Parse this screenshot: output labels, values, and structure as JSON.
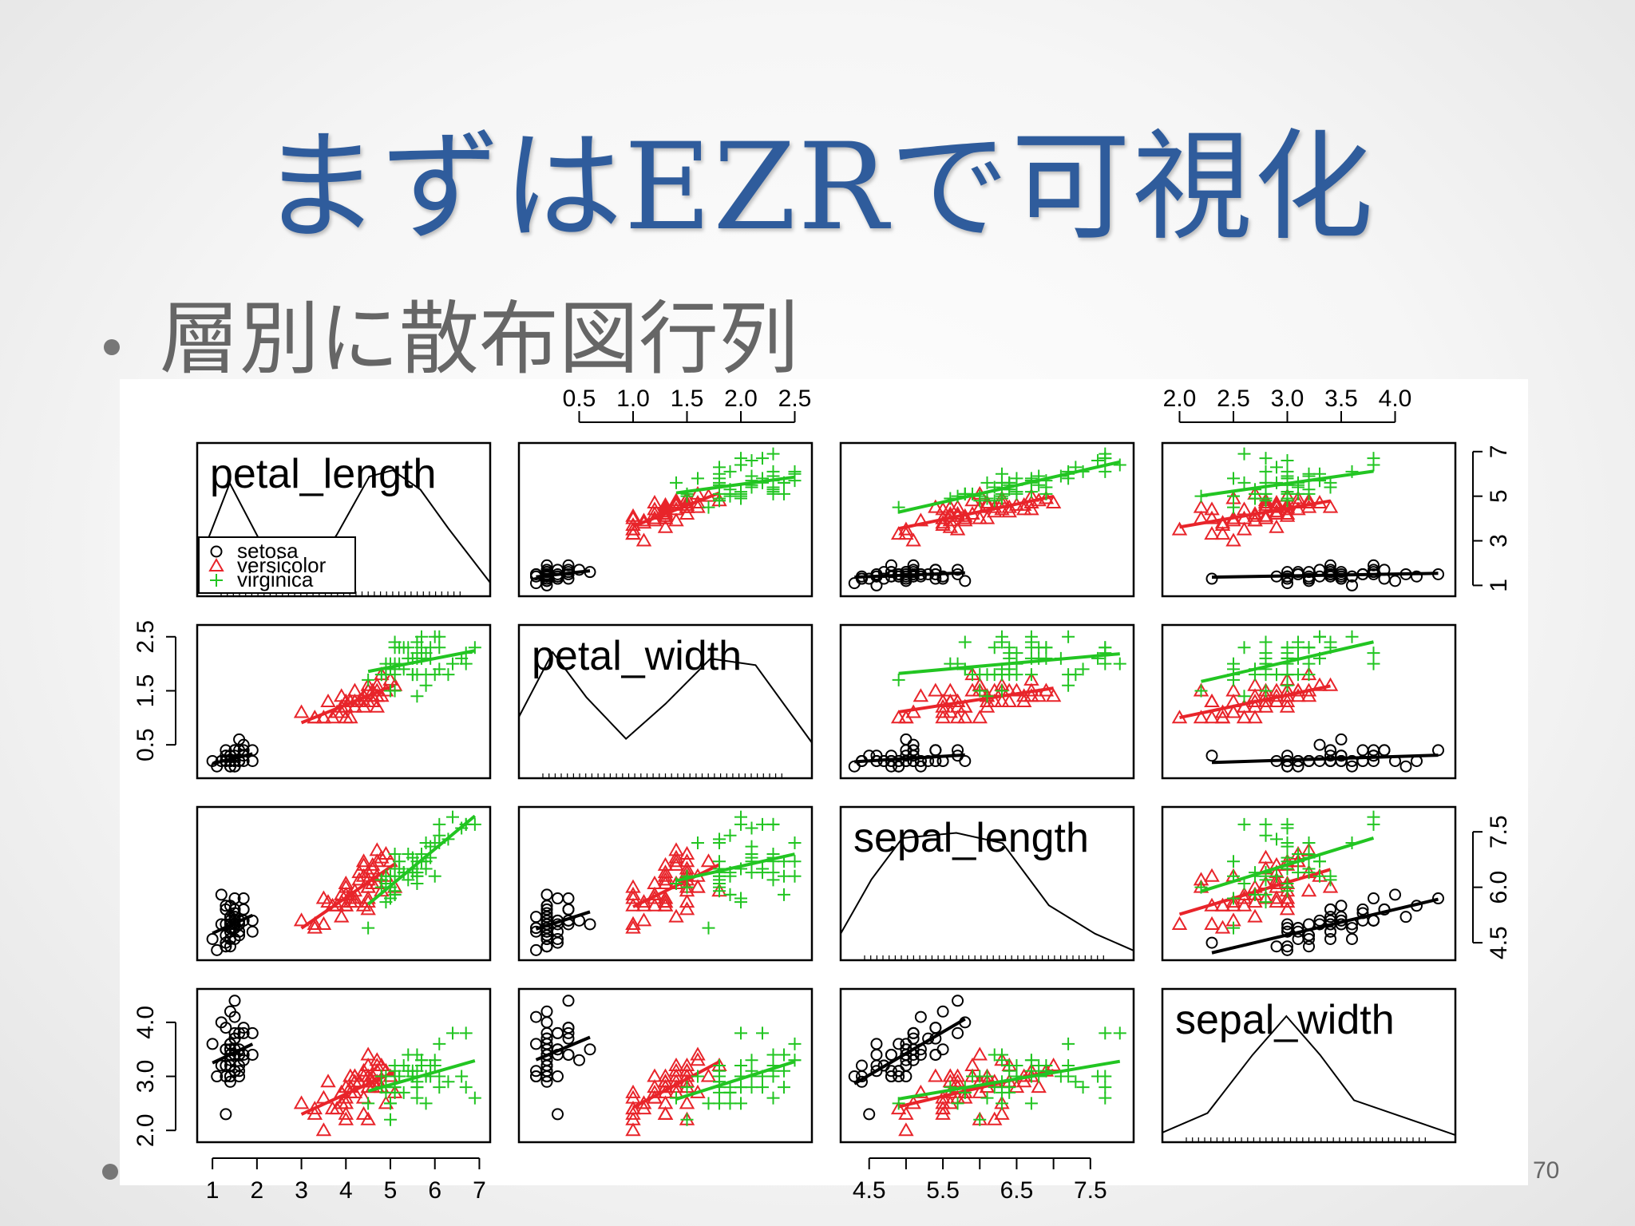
{
  "slide": {
    "title": "まずはEZRで可視化",
    "bullet": "層別に散布図行列",
    "page_number": "70"
  },
  "colors": {
    "title": "#2f5c9c",
    "setosa": "#000000",
    "versicolor": "#e8242a",
    "virginica": "#22c522"
  },
  "chart_data": {
    "type": "scatter",
    "subtype": "scatterplot-matrix",
    "variables": [
      "petal_length",
      "petal_width",
      "sepal_length",
      "sepal_width"
    ],
    "ranges": {
      "petal_length": [
        0.8,
        7.1
      ],
      "petal_width": [
        0.0,
        2.6
      ],
      "sepal_length": [
        4.2,
        8.0
      ],
      "sepal_width": [
        1.9,
        4.5
      ]
    },
    "ticks": {
      "petal_length": {
        "values": [
          1,
          2,
          3,
          4,
          5,
          6,
          7
        ],
        "labels": [
          "1",
          "2",
          "3",
          "4",
          "5",
          "6",
          "7"
        ]
      },
      "petal_length_right": {
        "values": [
          1,
          3,
          5,
          7
        ],
        "labels": [
          "1",
          "3",
          "5",
          "7"
        ]
      },
      "petal_width": {
        "values": [
          0.5,
          1.0,
          1.5,
          2.0,
          2.5
        ],
        "labels": [
          "0.5",
          "1.0",
          "1.5",
          "2.0",
          "2.5"
        ]
      },
      "petal_width_left": {
        "values": [
          0.5,
          1.5,
          2.5
        ],
        "labels": [
          "0.5",
          "1.5",
          "2.5"
        ]
      },
      "sepal_length": {
        "values": [
          4.5,
          5.0,
          5.5,
          6.0,
          6.5,
          7.0,
          7.5
        ],
        "labels": [
          "4.5",
          "",
          "5.5",
          "",
          "6.5",
          "",
          "7.5"
        ]
      },
      "sepal_length_right": {
        "values": [
          4.5,
          6.0,
          7.5
        ],
        "labels": [
          "4.5",
          "6.0",
          "7.5"
        ]
      },
      "sepal_width": {
        "values": [
          2.0,
          2.5,
          3.0,
          3.5,
          4.0
        ],
        "labels": [
          "2.0",
          "2.5",
          "3.0",
          "3.5",
          "4.0"
        ]
      },
      "sepal_width_left": {
        "values": [
          2.0,
          3.0,
          4.0
        ],
        "labels": [
          "2.0",
          "3.0",
          "4.0"
        ]
      }
    },
    "legend": {
      "position": "inside-top-left-bottom",
      "entries": [
        {
          "name": "setosa",
          "marker": "circle",
          "color": "#000000"
        },
        {
          "name": "versicolor",
          "marker": "triangle",
          "color": "#e8242a"
        },
        {
          "name": "virginica",
          "marker": "plus",
          "color": "#22c522"
        }
      ]
    },
    "density": {
      "petal_length": [
        [
          0.8,
          0.2
        ],
        [
          1.5,
          0.85
        ],
        [
          2.3,
          0.3
        ],
        [
          3.0,
          0.05
        ],
        [
          3.8,
          0.45
        ],
        [
          4.5,
          0.9
        ],
        [
          5.0,
          0.95
        ],
        [
          5.6,
          0.8
        ],
        [
          6.2,
          0.5
        ],
        [
          7.1,
          0.08
        ]
      ],
      "petal_width": [
        [
          0.0,
          0.45
        ],
        [
          0.3,
          0.95
        ],
        [
          0.6,
          0.6
        ],
        [
          0.95,
          0.28
        ],
        [
          1.3,
          0.55
        ],
        [
          1.7,
          0.9
        ],
        [
          2.1,
          0.85
        ],
        [
          2.6,
          0.25
        ]
      ],
      "sepal_length": [
        [
          4.2,
          0.18
        ],
        [
          4.6,
          0.6
        ],
        [
          5.0,
          0.92
        ],
        [
          5.7,
          0.96
        ],
        [
          6.3,
          0.88
        ],
        [
          6.9,
          0.4
        ],
        [
          7.5,
          0.18
        ],
        [
          8.0,
          0.05
        ]
      ],
      "sepal_width": [
        [
          1.9,
          0.05
        ],
        [
          2.3,
          0.2
        ],
        [
          2.7,
          0.65
        ],
        [
          3.0,
          0.95
        ],
        [
          3.3,
          0.65
        ],
        [
          3.6,
          0.3
        ],
        [
          4.0,
          0.18
        ],
        [
          4.5,
          0.03
        ]
      ]
    },
    "series": [
      {
        "name": "setosa",
        "points": [
          [
            1.4,
            0.2,
            5.1,
            3.5
          ],
          [
            1.4,
            0.2,
            4.9,
            3.0
          ],
          [
            1.3,
            0.2,
            4.7,
            3.2
          ],
          [
            1.5,
            0.2,
            4.6,
            3.1
          ],
          [
            1.4,
            0.2,
            5.0,
            3.6
          ],
          [
            1.7,
            0.4,
            5.4,
            3.9
          ],
          [
            1.4,
            0.3,
            4.6,
            3.4
          ],
          [
            1.5,
            0.2,
            5.0,
            3.4
          ],
          [
            1.4,
            0.2,
            4.4,
            2.9
          ],
          [
            1.5,
            0.1,
            4.9,
            3.1
          ],
          [
            1.5,
            0.2,
            5.4,
            3.7
          ],
          [
            1.6,
            0.2,
            4.8,
            3.4
          ],
          [
            1.4,
            0.1,
            4.8,
            3.0
          ],
          [
            1.1,
            0.1,
            4.3,
            3.0
          ],
          [
            1.2,
            0.2,
            5.8,
            4.0
          ],
          [
            1.5,
            0.4,
            5.7,
            4.4
          ],
          [
            1.3,
            0.4,
            5.4,
            3.9
          ],
          [
            1.4,
            0.3,
            5.1,
            3.5
          ],
          [
            1.7,
            0.3,
            5.7,
            3.8
          ],
          [
            1.5,
            0.3,
            5.1,
            3.8
          ],
          [
            1.7,
            0.2,
            5.4,
            3.4
          ],
          [
            1.5,
            0.4,
            5.1,
            3.7
          ],
          [
            1.0,
            0.2,
            4.6,
            3.6
          ],
          [
            1.7,
            0.5,
            5.1,
            3.3
          ],
          [
            1.9,
            0.2,
            4.8,
            3.4
          ],
          [
            1.6,
            0.2,
            5.0,
            3.0
          ],
          [
            1.6,
            0.4,
            5.0,
            3.4
          ],
          [
            1.5,
            0.2,
            5.2,
            3.5
          ],
          [
            1.4,
            0.2,
            5.2,
            3.4
          ],
          [
            1.6,
            0.2,
            4.7,
            3.2
          ],
          [
            1.6,
            0.2,
            4.8,
            3.1
          ],
          [
            1.5,
            0.4,
            5.4,
            3.4
          ],
          [
            1.5,
            0.1,
            5.2,
            4.1
          ],
          [
            1.4,
            0.2,
            5.5,
            4.2
          ],
          [
            1.5,
            0.2,
            4.9,
            3.1
          ],
          [
            1.2,
            0.2,
            5.0,
            3.2
          ],
          [
            1.3,
            0.2,
            5.5,
            3.5
          ],
          [
            1.4,
            0.1,
            4.9,
            3.6
          ],
          [
            1.3,
            0.2,
            4.4,
            3.0
          ],
          [
            1.5,
            0.2,
            5.1,
            3.4
          ],
          [
            1.3,
            0.3,
            5.0,
            3.5
          ],
          [
            1.3,
            0.3,
            4.5,
            2.3
          ],
          [
            1.3,
            0.2,
            4.4,
            3.2
          ],
          [
            1.6,
            0.6,
            5.0,
            3.5
          ],
          [
            1.9,
            0.4,
            5.1,
            3.8
          ],
          [
            1.4,
            0.3,
            4.8,
            3.0
          ],
          [
            1.6,
            0.2,
            5.1,
            3.8
          ],
          [
            1.4,
            0.2,
            4.6,
            3.2
          ],
          [
            1.5,
            0.2,
            5.3,
            3.7
          ],
          [
            1.4,
            0.2,
            5.0,
            3.3
          ]
        ]
      },
      {
        "name": "versicolor",
        "points": [
          [
            4.7,
            1.4,
            7.0,
            3.2
          ],
          [
            4.5,
            1.5,
            6.4,
            3.2
          ],
          [
            4.9,
            1.5,
            6.9,
            3.1
          ],
          [
            4.0,
            1.3,
            5.5,
            2.3
          ],
          [
            4.6,
            1.5,
            6.5,
            2.8
          ],
          [
            4.5,
            1.3,
            5.7,
            2.8
          ],
          [
            4.7,
            1.6,
            6.3,
            3.3
          ],
          [
            3.3,
            1.0,
            4.9,
            2.4
          ],
          [
            4.6,
            1.3,
            6.6,
            2.9
          ],
          [
            3.9,
            1.4,
            5.2,
            2.7
          ],
          [
            3.5,
            1.0,
            5.0,
            2.0
          ],
          [
            4.2,
            1.5,
            5.9,
            3.0
          ],
          [
            4.0,
            1.0,
            6.0,
            2.2
          ],
          [
            4.7,
            1.4,
            6.1,
            2.9
          ],
          [
            3.6,
            1.3,
            5.6,
            2.9
          ],
          [
            4.4,
            1.4,
            6.7,
            3.1
          ],
          [
            4.5,
            1.5,
            5.6,
            3.0
          ],
          [
            4.1,
            1.0,
            5.8,
            2.7
          ],
          [
            4.5,
            1.5,
            6.2,
            2.2
          ],
          [
            3.9,
            1.1,
            5.6,
            2.5
          ],
          [
            4.8,
            1.8,
            5.9,
            3.2
          ],
          [
            4.0,
            1.3,
            6.1,
            2.8
          ],
          [
            4.9,
            1.5,
            6.3,
            2.5
          ],
          [
            4.7,
            1.2,
            6.1,
            2.8
          ],
          [
            4.3,
            1.3,
            6.4,
            2.9
          ],
          [
            4.4,
            1.4,
            6.6,
            3.0
          ],
          [
            4.8,
            1.4,
            6.8,
            2.8
          ],
          [
            5.0,
            1.7,
            6.7,
            3.0
          ],
          [
            4.5,
            1.5,
            6.0,
            2.9
          ],
          [
            3.5,
            1.0,
            5.7,
            2.6
          ],
          [
            3.8,
            1.1,
            5.5,
            2.4
          ],
          [
            3.7,
            1.0,
            5.5,
            2.4
          ],
          [
            3.9,
            1.2,
            5.8,
            2.7
          ],
          [
            5.1,
            1.6,
            6.0,
            2.7
          ],
          [
            4.5,
            1.5,
            5.4,
            3.0
          ],
          [
            4.5,
            1.6,
            6.0,
            3.4
          ],
          [
            4.7,
            1.5,
            6.7,
            3.1
          ],
          [
            4.4,
            1.3,
            6.3,
            2.3
          ],
          [
            4.1,
            1.3,
            5.6,
            3.0
          ],
          [
            4.0,
            1.3,
            5.5,
            2.5
          ],
          [
            4.4,
            1.2,
            5.5,
            2.6
          ],
          [
            4.6,
            1.4,
            6.1,
            3.0
          ],
          [
            4.0,
            1.2,
            5.8,
            2.6
          ],
          [
            3.3,
            1.0,
            5.0,
            2.3
          ],
          [
            4.2,
            1.3,
            5.6,
            2.7
          ],
          [
            4.2,
            1.2,
            5.7,
            3.0
          ],
          [
            4.2,
            1.3,
            5.7,
            2.9
          ],
          [
            4.3,
            1.3,
            6.2,
            2.9
          ],
          [
            3.0,
            1.1,
            5.1,
            2.5
          ],
          [
            4.1,
            1.3,
            5.7,
            2.8
          ]
        ]
      },
      {
        "name": "virginica",
        "points": [
          [
            6.0,
            2.5,
            6.3,
            3.3
          ],
          [
            5.1,
            1.9,
            5.8,
            2.7
          ],
          [
            5.9,
            2.1,
            7.1,
            3.0
          ],
          [
            5.6,
            1.8,
            6.3,
            2.9
          ],
          [
            5.8,
            2.2,
            6.5,
            3.0
          ],
          [
            6.6,
            2.1,
            7.6,
            3.0
          ],
          [
            4.5,
            1.7,
            4.9,
            2.5
          ],
          [
            6.3,
            1.8,
            7.3,
            2.9
          ],
          [
            5.8,
            1.8,
            6.7,
            2.5
          ],
          [
            6.1,
            2.5,
            7.2,
            3.6
          ],
          [
            5.1,
            2.0,
            6.5,
            3.2
          ],
          [
            5.3,
            1.9,
            6.4,
            2.7
          ],
          [
            5.5,
            2.1,
            6.8,
            3.0
          ],
          [
            5.0,
            2.0,
            5.7,
            2.5
          ],
          [
            5.1,
            2.4,
            5.8,
            2.8
          ],
          [
            5.3,
            2.3,
            6.4,
            3.2
          ],
          [
            5.5,
            1.8,
            6.5,
            3.0
          ],
          [
            6.7,
            2.2,
            7.7,
            3.8
          ],
          [
            6.9,
            2.3,
            7.7,
            2.6
          ],
          [
            5.0,
            1.5,
            6.0,
            2.2
          ],
          [
            5.7,
            2.3,
            6.9,
            3.2
          ],
          [
            4.9,
            2.0,
            5.6,
            2.8
          ],
          [
            6.7,
            2.0,
            7.7,
            2.8
          ],
          [
            4.9,
            1.8,
            6.3,
            2.7
          ],
          [
            5.7,
            2.1,
            6.7,
            3.3
          ],
          [
            6.0,
            1.8,
            7.2,
            3.2
          ],
          [
            4.8,
            1.8,
            6.2,
            2.8
          ],
          [
            4.9,
            1.8,
            6.1,
            3.0
          ],
          [
            5.6,
            2.1,
            6.4,
            2.8
          ],
          [
            5.8,
            1.6,
            7.2,
            3.0
          ],
          [
            6.1,
            1.9,
            7.4,
            2.8
          ],
          [
            6.4,
            2.0,
            7.9,
            3.8
          ],
          [
            5.6,
            2.2,
            6.4,
            2.8
          ],
          [
            5.1,
            1.5,
            6.3,
            2.8
          ],
          [
            5.6,
            1.4,
            6.1,
            2.6
          ],
          [
            6.1,
            2.3,
            7.7,
            3.0
          ],
          [
            5.6,
            2.4,
            6.3,
            3.4
          ],
          [
            5.5,
            1.8,
            6.4,
            3.1
          ],
          [
            4.8,
            1.8,
            6.0,
            3.0
          ],
          [
            5.4,
            2.1,
            6.9,
            3.1
          ],
          [
            5.6,
            2.4,
            6.7,
            3.1
          ],
          [
            5.1,
            2.3,
            6.9,
            3.1
          ],
          [
            5.1,
            1.9,
            5.8,
            2.7
          ],
          [
            5.9,
            2.3,
            6.8,
            3.2
          ],
          [
            5.7,
            2.5,
            6.7,
            3.3
          ],
          [
            5.2,
            2.3,
            6.7,
            3.0
          ],
          [
            5.0,
            1.9,
            6.3,
            2.5
          ],
          [
            5.2,
            2.0,
            6.5,
            3.0
          ],
          [
            5.4,
            2.3,
            6.2,
            3.4
          ],
          [
            5.1,
            1.8,
            5.9,
            3.0
          ]
        ]
      }
    ]
  }
}
